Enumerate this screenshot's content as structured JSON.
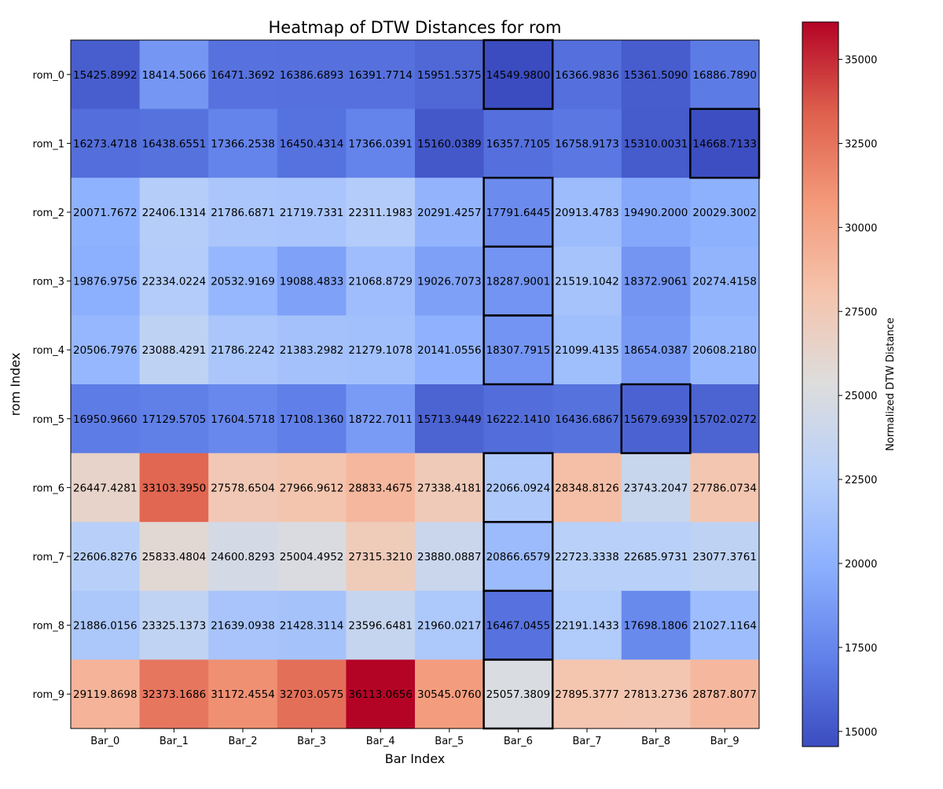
{
  "chart_data": {
    "type": "heatmap",
    "title": "Heatmap of DTW Distances for rom",
    "xlabel": "Bar Index",
    "ylabel": "rom Index",
    "x_categories": [
      "Bar_0",
      "Bar_1",
      "Bar_2",
      "Bar_3",
      "Bar_4",
      "Bar_5",
      "Bar_6",
      "Bar_7",
      "Bar_8",
      "Bar_9"
    ],
    "y_categories": [
      "rom_0",
      "rom_1",
      "rom_2",
      "rom_3",
      "rom_4",
      "rom_5",
      "rom_6",
      "rom_7",
      "rom_8",
      "rom_9"
    ],
    "values": [
      [
        15425.8992,
        18414.5066,
        16471.3692,
        16386.6893,
        16391.7714,
        15951.5375,
        14549.98,
        16366.9836,
        15361.509,
        16886.789
      ],
      [
        16273.4718,
        16438.6551,
        17366.2538,
        16450.4314,
        17366.0391,
        15160.0389,
        16357.7105,
        16758.9173,
        15310.0031,
        14668.7133
      ],
      [
        20071.7672,
        22406.1314,
        21786.6871,
        21719.7331,
        22311.1983,
        20291.4257,
        17791.6445,
        20913.4783,
        19490.2,
        20029.3002
      ],
      [
        19876.9756,
        22334.0224,
        20532.9169,
        19088.4833,
        21068.8729,
        19026.7073,
        18287.9001,
        21519.1042,
        18372.9061,
        20274.4158
      ],
      [
        20506.7976,
        23088.4291,
        21786.2242,
        21383.2982,
        21279.1078,
        20141.0556,
        18307.7915,
        21099.4135,
        18654.0387,
        20608.218
      ],
      [
        16950.966,
        17129.5705,
        17604.5718,
        17108.136,
        18722.7011,
        15713.9449,
        16222.141,
        16436.6867,
        15679.6939,
        15702.0272
      ],
      [
        26447.4281,
        33103.395,
        27578.6504,
        27966.9612,
        28833.4675,
        27338.4181,
        22066.0924,
        28348.8126,
        23743.2047,
        27786.0734
      ],
      [
        22606.8276,
        25833.4804,
        24600.8293,
        25004.4952,
        27315.321,
        23880.0887,
        20866.6579,
        22723.3338,
        22685.9731,
        23077.3761
      ],
      [
        21886.0156,
        23325.1373,
        21639.0938,
        21428.3114,
        23596.6481,
        21960.0217,
        16467.0455,
        22191.1433,
        17698.1806,
        21027.1164
      ],
      [
        29119.8698,
        32373.1686,
        31172.4554,
        32703.0575,
        36113.0656,
        30545.076,
        25057.3809,
        27895.3777,
        27813.2736,
        28787.8077
      ]
    ],
    "highlighted_cells": [
      [
        0,
        6
      ],
      [
        1,
        9
      ],
      [
        2,
        6
      ],
      [
        3,
        6
      ],
      [
        4,
        6
      ],
      [
        5,
        8
      ],
      [
        6,
        6
      ],
      [
        7,
        6
      ],
      [
        8,
        6
      ],
      [
        9,
        6
      ]
    ],
    "colormap": "coolwarm",
    "vmin": 14549.98,
    "vmax": 36113.0656,
    "colorbar": {
      "label": "Normalized DTW Distance",
      "ticks": [
        15000,
        17500,
        20000,
        22500,
        25000,
        27500,
        30000,
        32500,
        35000
      ]
    },
    "grid": false,
    "legend": "none"
  }
}
